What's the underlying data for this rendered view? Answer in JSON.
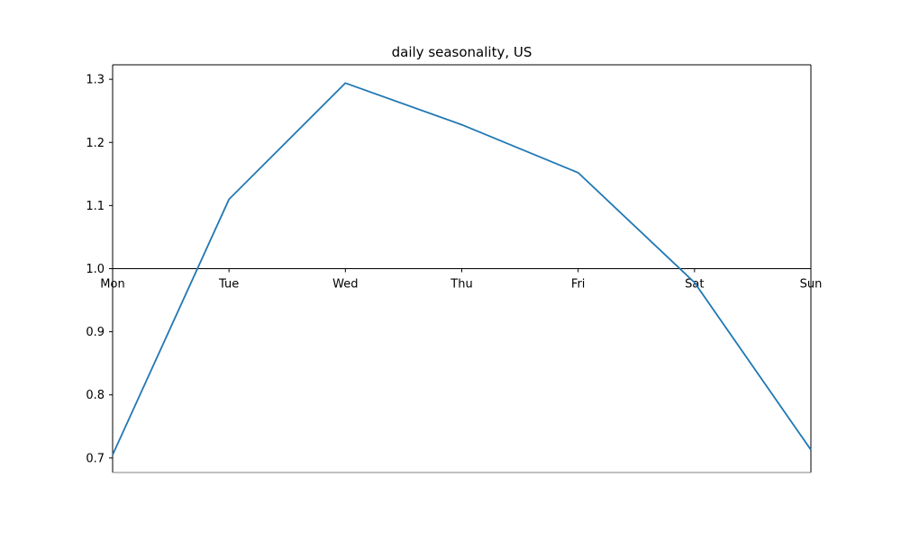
{
  "chart_data": {
    "type": "line",
    "title": "daily seasonality, US",
    "xlabel": "",
    "ylabel": "",
    "categories": [
      "Mon",
      "Tue",
      "Wed",
      "Thu",
      "Fri",
      "Sat",
      "Sun"
    ],
    "series": [
      {
        "values": [
          0.705,
          1.11,
          1.294,
          1.228,
          1.152,
          0.978,
          0.713
        ]
      }
    ],
    "ylim": [
      0.677,
      1.323
    ],
    "yticks": [
      0.7,
      0.8,
      0.9,
      1.0,
      1.1,
      1.2,
      1.3
    ],
    "ytick_labels": [
      "0.7",
      "0.8",
      "0.9",
      "1.0",
      "1.1",
      "1.2",
      "1.3"
    ],
    "x_axis_at": 1.0,
    "grid": false,
    "line_color": "#1f77b4"
  }
}
